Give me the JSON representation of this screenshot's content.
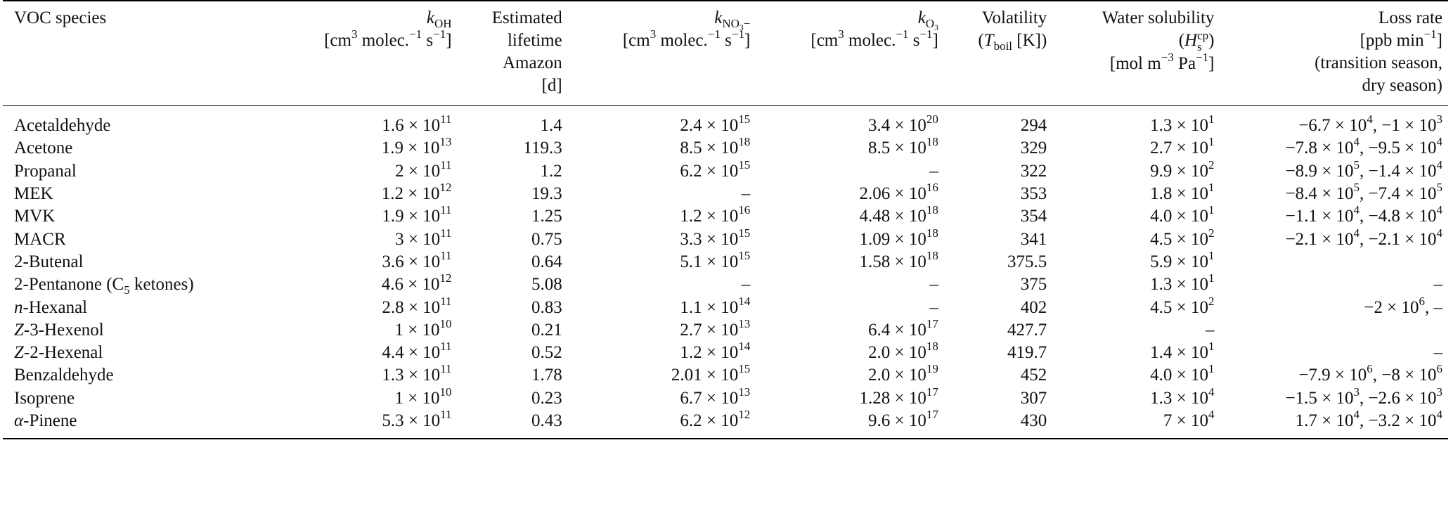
{
  "headers": {
    "voc": {
      "l1": "VOC species"
    },
    "koh": {
      "k": "k",
      "sub": "OH",
      "unit_a": "[cm",
      "unit_sup1": "3",
      "unit_b": " molec.",
      "unit_sup2": "−1",
      "unit_c": " s",
      "unit_sup3": "−1",
      "unit_d": "]"
    },
    "life": {
      "l1": "Estimated",
      "l2": "lifetime",
      "l3": "Amazon",
      "l4": "[d]"
    },
    "kno3": {
      "k": "k",
      "sub": "NO",
      "subsub": "3",
      "subtail": "−",
      "unit_a": "[cm",
      "unit_sup1": "3",
      "unit_b": " molec.",
      "unit_sup2": "−1",
      "unit_c": " s",
      "unit_sup3": "−1",
      "unit_d": "]"
    },
    "ko3": {
      "k": "k",
      "sub": "O",
      "subsub": "3",
      "unit_a": "[cm",
      "unit_sup1": "3",
      "unit_b": " molec.",
      "unit_sup2": "−1",
      "unit_c": " s",
      "unit_sup3": "−1",
      "unit_d": "]"
    },
    "vol": {
      "l1": "Volatility",
      "l2a": "(",
      "t": "T",
      "tsub": "boil",
      "l2b": " [K])"
    },
    "sol": {
      "l1": "Water solubility",
      "l2a": "(",
      "h": "H",
      "hsub": "s",
      "hsup": "cp",
      "l2b": ")",
      "l3a": "[mol m",
      "l3sup1": "−3",
      "l3b": " Pa",
      "l3sup2": "−1",
      "l3c": "]"
    },
    "loss": {
      "l1a": "Loss rate",
      "l2a": "[ppb min",
      "l2sup": "−1",
      "l2b": "]",
      "l3": "(transition season,",
      "l4": "dry season)"
    }
  },
  "rows": [
    {
      "name": "Acetaldehyde",
      "koh": {
        "m": "1.6",
        "e": "11"
      },
      "life": "1.4",
      "kno3": {
        "m": "2.4",
        "e": "15"
      },
      "ko3": {
        "m": "3.4",
        "e": "20"
      },
      "vol": "294",
      "sol": {
        "m": "1.3",
        "e": "1"
      },
      "loss": [
        {
          "m": "−6.7",
          "e": "4"
        },
        {
          "m": "−1",
          "e": "3"
        }
      ]
    },
    {
      "name": "Acetone",
      "koh": {
        "m": "1.9",
        "e": "13"
      },
      "life": "119.3",
      "kno3": {
        "m": "8.5",
        "e": "18"
      },
      "ko3": {
        "m": "8.5",
        "e": "18"
      },
      "vol": "329",
      "sol": {
        "m": "2.7",
        "e": "1"
      },
      "loss": [
        {
          "m": "−7.8",
          "e": "4"
        },
        {
          "m": "−9.5",
          "e": "4"
        }
      ]
    },
    {
      "name": "Propanal",
      "koh": {
        "m": "2",
        "e": "11"
      },
      "life": "1.2",
      "kno3": {
        "m": "6.2",
        "e": "15"
      },
      "ko3": "–",
      "vol": "322",
      "sol": {
        "m": "9.9",
        "e": "2"
      },
      "loss": [
        {
          "m": "−8.9",
          "e": "5"
        },
        {
          "m": "−1.4",
          "e": "4"
        }
      ]
    },
    {
      "name": "MEK",
      "koh": {
        "m": "1.2",
        "e": "12"
      },
      "life": "19.3",
      "kno3": "–",
      "ko3": {
        "m": "2.06",
        "e": "16"
      },
      "vol": "353",
      "sol": {
        "m": "1.8",
        "e": "1"
      },
      "loss": [
        {
          "m": "−8.4",
          "e": "5"
        },
        {
          "m": "−7.4",
          "e": "5"
        }
      ]
    },
    {
      "name": "MVK",
      "koh": {
        "m": "1.9",
        "e": "11"
      },
      "life": "1.25",
      "kno3": {
        "m": "1.2",
        "e": "16"
      },
      "ko3": {
        "m": "4.48",
        "e": "18"
      },
      "vol": "354",
      "sol": {
        "m": "4.0",
        "e": "1"
      },
      "loss": [
        {
          "m": "−1.1",
          "e": "4"
        },
        {
          "m": "−4.8",
          "e": "4"
        }
      ]
    },
    {
      "name": "MACR",
      "koh": {
        "m": "3",
        "e": "11"
      },
      "life": "0.75",
      "kno3": {
        "m": "3.3",
        "e": "15"
      },
      "ko3": {
        "m": "1.09",
        "e": "18"
      },
      "vol": "341",
      "sol": {
        "m": "4.5",
        "e": "2"
      },
      "loss": [
        {
          "m": "−2.1",
          "e": "4"
        },
        {
          "m": "−2.1",
          "e": "4"
        }
      ]
    },
    {
      "name": "2-Butenal",
      "koh": {
        "m": "3.6",
        "e": "11"
      },
      "life": "0.64",
      "kno3": {
        "m": "5.1",
        "e": "15"
      },
      "ko3": {
        "m": "1.58",
        "e": "18"
      },
      "vol": "375.5",
      "sol": {
        "m": "5.9",
        "e": "1"
      },
      "loss": ""
    },
    {
      "name_a": "2-Pentanone (C",
      "name_sub": "5",
      "name_b": " ketones)",
      "koh": {
        "m": "4.6",
        "e": "12"
      },
      "life": "5.08",
      "kno3": "–",
      "ko3": "–",
      "vol": "375",
      "sol": {
        "m": "1.3",
        "e": "1"
      },
      "loss": "–"
    },
    {
      "name_it": "n",
      "name_b": "-Hexanal",
      "koh": {
        "m": "2.8",
        "e": "11"
      },
      "life": "0.83",
      "kno3": {
        "m": "1.1",
        "e": "14"
      },
      "ko3": "–",
      "vol": "402",
      "sol": {
        "m": "4.5",
        "e": "2"
      },
      "loss": [
        {
          "m": "−2",
          "e": "6"
        },
        "–"
      ]
    },
    {
      "name_it": "Z",
      "name_b": "-3-Hexenol",
      "koh": {
        "m": "1",
        "e": "10"
      },
      "life": "0.21",
      "kno3": {
        "m": "2.7",
        "e": "13"
      },
      "ko3": {
        "m": "6.4",
        "e": "17"
      },
      "vol": "427.7",
      "sol": "–",
      "loss": ""
    },
    {
      "name_it": "Z",
      "name_b": "-2-Hexenal",
      "koh": {
        "m": "4.4",
        "e": "11"
      },
      "life": "0.52",
      "kno3": {
        "m": "1.2",
        "e": "14"
      },
      "ko3": {
        "m": "2.0",
        "e": "18"
      },
      "vol": "419.7",
      "sol": {
        "m": "1.4",
        "e": "1"
      },
      "loss": "–"
    },
    {
      "name": "Benzaldehyde",
      "koh": {
        "m": "1.3",
        "e": "11"
      },
      "life": "1.78",
      "kno3": {
        "m": "2.01",
        "e": "15"
      },
      "ko3": {
        "m": "2.0",
        "e": "19"
      },
      "vol": "452",
      "sol": {
        "m": "4.0",
        "e": "1"
      },
      "loss": [
        {
          "m": "−7.9",
          "e": "6"
        },
        {
          "m": "−8",
          "e": "6"
        }
      ]
    },
    {
      "name": "Isoprene",
      "koh": {
        "m": "1",
        "e": "10"
      },
      "life": "0.23",
      "kno3": {
        "m": "6.7",
        "e": "13"
      },
      "ko3": {
        "m": "1.28",
        "e": "17"
      },
      "vol": "307",
      "sol": {
        "m": "1.3",
        "e": "4"
      },
      "loss": [
        {
          "m": "−1.5",
          "e": "3"
        },
        {
          "m": "−2.6",
          "e": "3"
        }
      ]
    },
    {
      "name_it": "α",
      "name_b": "-Pinene",
      "koh": {
        "m": "5.3",
        "e": "11"
      },
      "life": "0.43",
      "kno3": {
        "m": "6.2",
        "e": "12"
      },
      "ko3": {
        "m": "9.6",
        "e": "17"
      },
      "vol": "430",
      "sol": {
        "m": "7",
        "e": "4"
      },
      "loss": [
        {
          "m": "1.7",
          "e": "4"
        },
        {
          "m": "−3.2",
          "e": "4"
        }
      ]
    }
  ],
  "symbols": {
    "times": " × ",
    "base": "10",
    "sep": ", "
  }
}
